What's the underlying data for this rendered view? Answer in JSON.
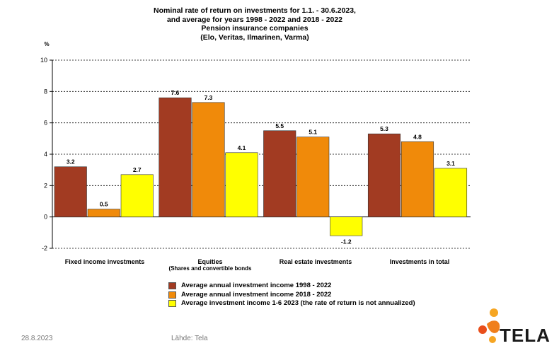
{
  "title_lines": [
    "Nominal rate of return on investments for 1.1. - 30.6.2023,",
    "and average for years 1998 - 2022 and 2018 - 2022",
    "Pension insurance companies",
    "(Elo, Veritas, Ilmarinen, Varma)"
  ],
  "footer": {
    "date": "28.8.2023",
    "source": "Lähde: Tela"
  },
  "logo": {
    "text": "TELA",
    "colors": [
      "#f07f1b",
      "#e94e1b",
      "#f6a623"
    ]
  },
  "colors": {
    "series_1998_2022": "#a23b22",
    "series_2018_2022": "#f08a0a",
    "series_2023": "#ffff00",
    "grid": "#000000"
  },
  "chart_data": {
    "type": "bar",
    "title": "Nominal rate of return on investments for 1.1. - 30.6.2023, and average for years 1998 - 2022 and 2018 - 2022 Pension insurance companies (Elo, Veritas, Ilmarinen, Varma)",
    "ylabel": "%",
    "xlabel": "",
    "ylim": [
      -2,
      10
    ],
    "yticks": [
      -2,
      0,
      2,
      4,
      6,
      8,
      10
    ],
    "grid": true,
    "legend_position": "bottom",
    "categories": [
      "Fixed income investments",
      "Equities",
      "Real estate investments",
      "Investments  in total"
    ],
    "category_sublabels": [
      "",
      "(Shares  and  convertible bonds",
      "",
      ""
    ],
    "series": [
      {
        "name": "Average annual investment income 1998 - 2022",
        "color": "#a23b22",
        "values": [
          3.2,
          7.6,
          5.5,
          5.3
        ]
      },
      {
        "name": "Average annual investment income 2018 - 2022",
        "color": "#f08a0a",
        "values": [
          0.5,
          7.3,
          5.1,
          4.8
        ]
      },
      {
        "name": "Average investment income 1-6 2023 (the rate of return is not annualized)",
        "color": "#ffff00",
        "values": [
          2.7,
          4.1,
          -1.2,
          3.1
        ]
      }
    ]
  }
}
